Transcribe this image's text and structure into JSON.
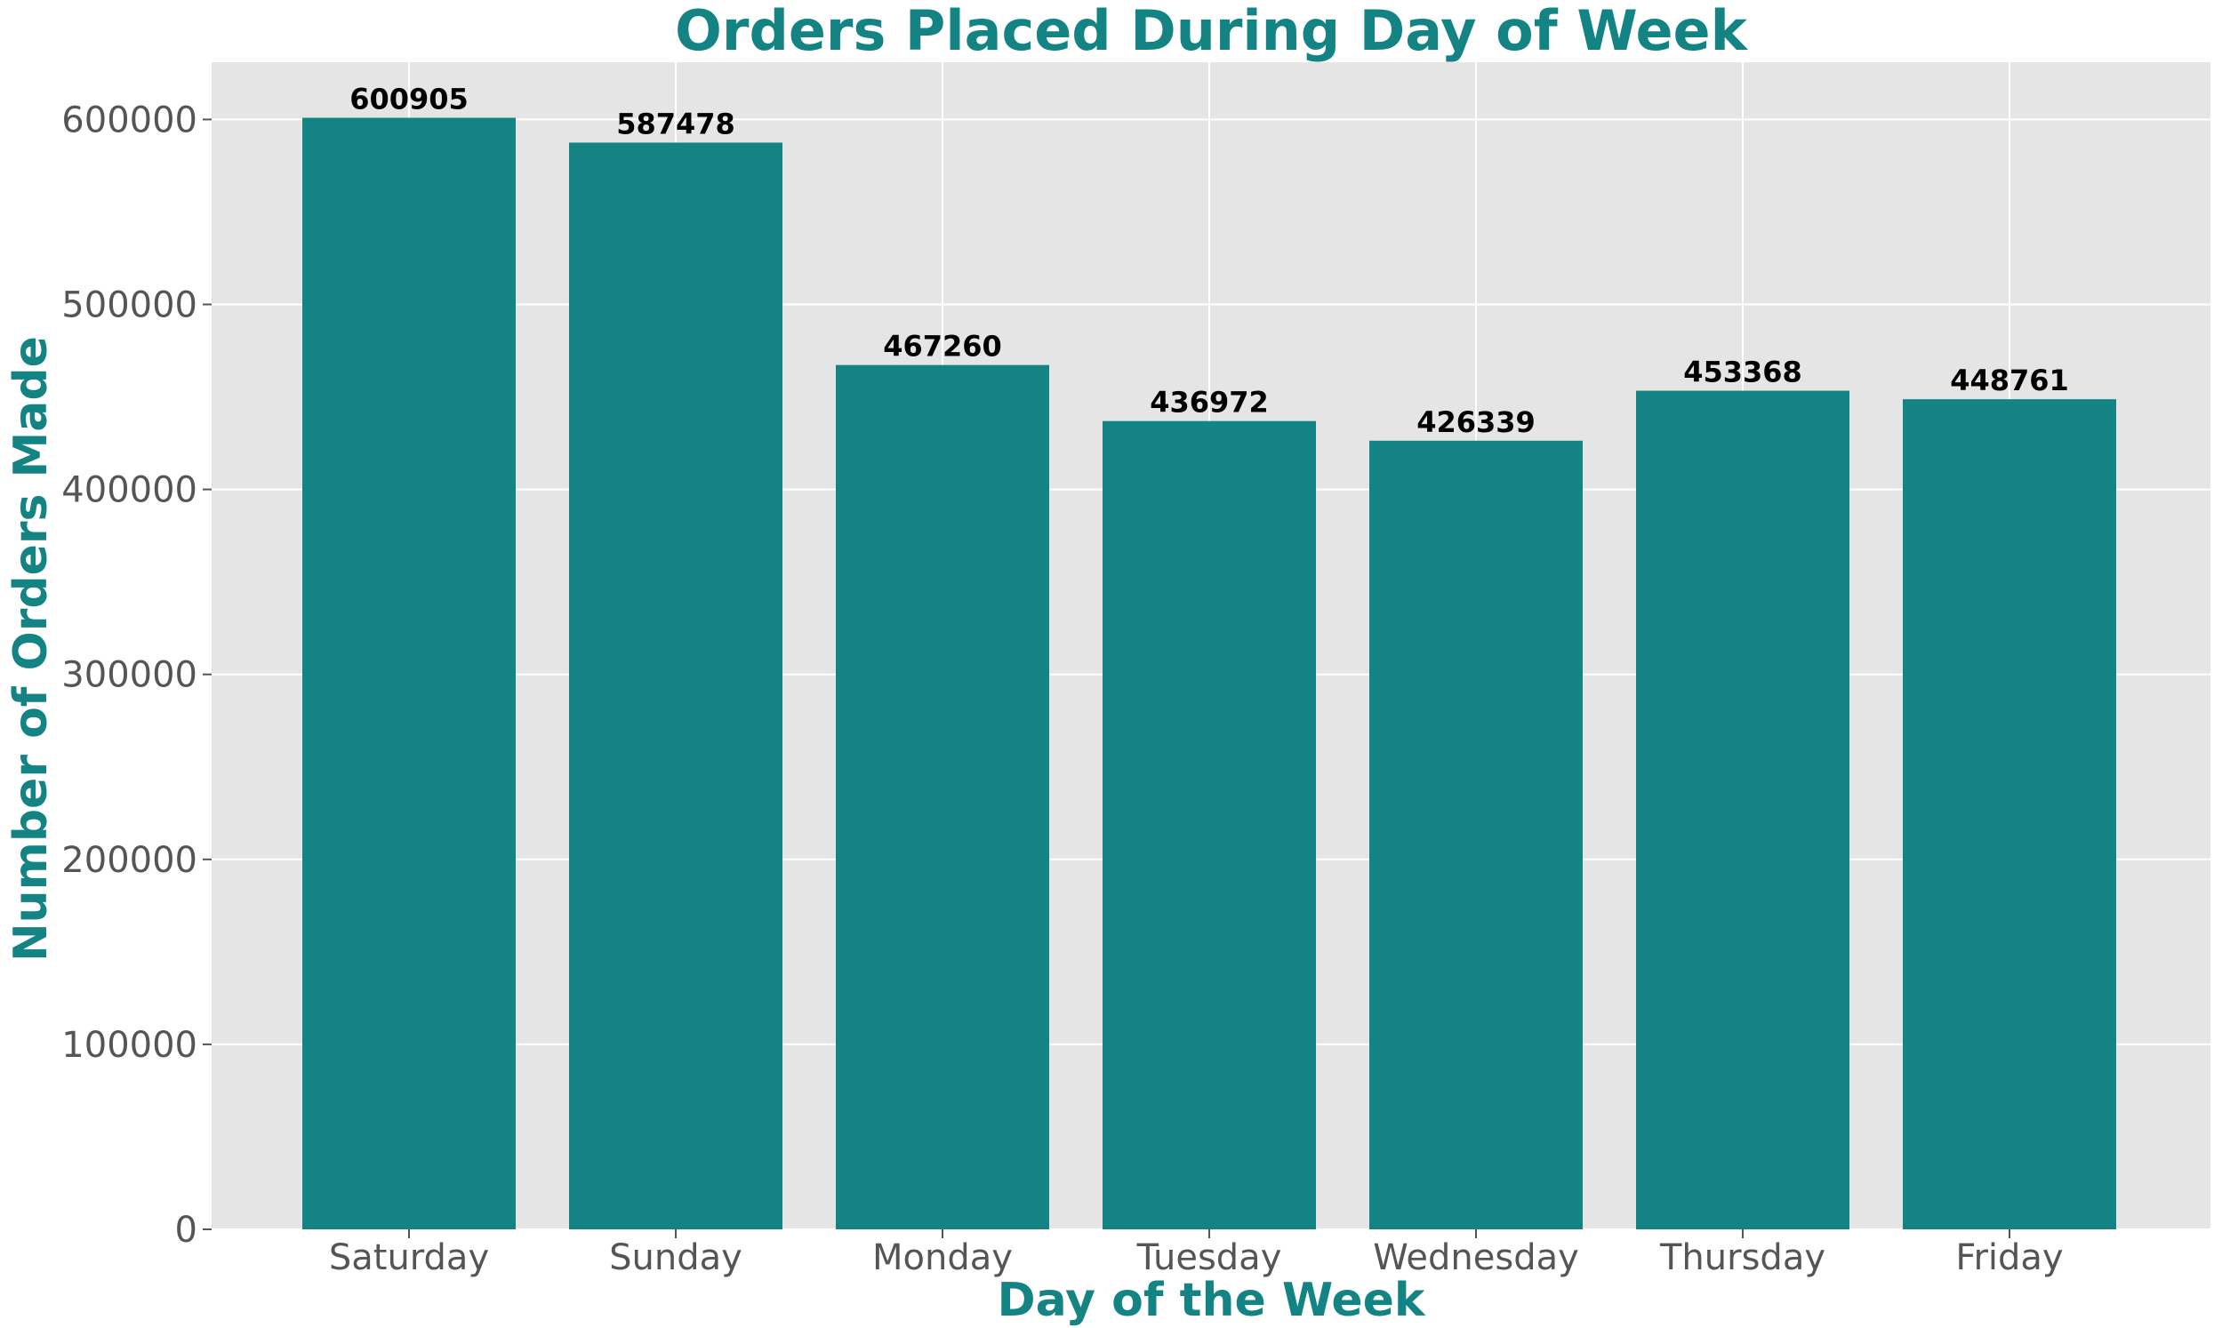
{
  "chart_data": {
    "type": "bar",
    "title": "Orders Placed During Day of Week",
    "xlabel": "Day of the Week",
    "ylabel": "Number of Orders Made",
    "categories": [
      "Saturday",
      "Sunday",
      "Monday",
      "Tuesday",
      "Wednesday",
      "Thursday",
      "Friday"
    ],
    "values": [
      600905,
      587478,
      467260,
      436972,
      426339,
      453368,
      448761
    ],
    "data_labels": [
      "600905",
      "587478",
      "467260",
      "436972",
      "426339",
      "453368",
      "448761"
    ],
    "yticks": [
      0,
      100000,
      200000,
      300000,
      400000,
      500000,
      600000
    ],
    "ytick_labels": [
      "0",
      "100000",
      "200000",
      "300000",
      "400000",
      "500000",
      "600000"
    ],
    "ylim": [
      0,
      630950
    ],
    "grid": true,
    "legend": "none"
  },
  "colors": {
    "bar": "#138383",
    "title": "#138383",
    "axis_label": "#138383",
    "plot_background": "#e5e5e5",
    "grid": "#ffffff",
    "tick_label": "#555555",
    "data_label": "#000000"
  }
}
